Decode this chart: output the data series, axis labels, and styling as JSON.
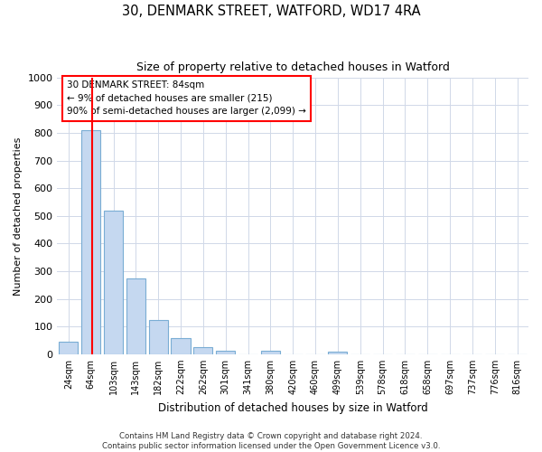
{
  "title": "30, DENMARK STREET, WATFORD, WD17 4RA",
  "subtitle": "Size of property relative to detached houses in Watford",
  "xlabel": "Distribution of detached houses by size in Watford",
  "ylabel": "Number of detached properties",
  "categories": [
    "24sqm",
    "64sqm",
    "103sqm",
    "143sqm",
    "182sqm",
    "222sqm",
    "262sqm",
    "301sqm",
    "341sqm",
    "380sqm",
    "420sqm",
    "460sqm",
    "499sqm",
    "539sqm",
    "578sqm",
    "618sqm",
    "658sqm",
    "697sqm",
    "737sqm",
    "776sqm",
    "816sqm"
  ],
  "values": [
    46,
    810,
    520,
    275,
    125,
    58,
    25,
    12,
    0,
    12,
    0,
    0,
    10,
    0,
    0,
    0,
    0,
    0,
    0,
    0,
    0
  ],
  "bar_color": "#c5d8f0",
  "bar_edge_color": "#7aadd4",
  "ylim": [
    0,
    1000
  ],
  "yticks": [
    0,
    100,
    200,
    300,
    400,
    500,
    600,
    700,
    800,
    900,
    1000
  ],
  "property_label": "30 DENMARK STREET: 84sqm",
  "annotation_line1": "← 9% of detached houses are smaller (215)",
  "annotation_line2": "90% of semi-detached houses are larger (2,099) →",
  "vline_x_index": 1.05,
  "footer_line1": "Contains HM Land Registry data © Crown copyright and database right 2024.",
  "footer_line2": "Contains public sector information licensed under the Open Government Licence v3.0.",
  "background_color": "#ffffff",
  "plot_background_color": "#ffffff"
}
